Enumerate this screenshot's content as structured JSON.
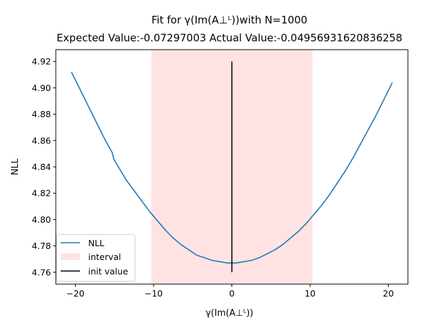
{
  "chart_data": {
    "type": "line",
    "title_line1": "Fit for γ(Im(A⊥ᴸ))with N=1000",
    "title_line2": "Expected Value:-0.07297003 Actual Value:-0.04956931620836258",
    "xlabel": "γ(Im(A⊥ᴸ))",
    "ylabel": "NLL",
    "xlim": [
      -22.5,
      22.5
    ],
    "ylim": [
      4.751,
      4.929
    ],
    "x_ticks": [
      -20,
      -10,
      0,
      10,
      20
    ],
    "y_ticks": [
      4.76,
      4.78,
      4.8,
      4.82,
      4.84,
      4.86,
      4.88,
      4.9,
      4.92
    ],
    "x_tick_labels": [
      "−20",
      "−10",
      "0",
      "10",
      "20"
    ],
    "y_tick_labels": [
      "4.76",
      "4.78",
      "4.80",
      "4.82",
      "4.84",
      "4.86",
      "4.88",
      "4.90",
      "4.92"
    ],
    "series": [
      {
        "name": "NLL",
        "color": "#1f77b4",
        "x": [
          -20.5,
          -19.5,
          -18.5,
          -17.5,
          -16.5,
          -15.7,
          -15.3,
          -15.1,
          -14.5,
          -13.5,
          -12.5,
          -11.5,
          -10.5,
          -9.5,
          -8.5,
          -7.5,
          -6.5,
          -5.5,
          -4.5,
          -3.5,
          -2.5,
          -1.5,
          -0.5,
          0.0,
          0.5,
          1.5,
          2.5,
          3.5,
          4.5,
          5.5,
          6.5,
          7.5,
          8.5,
          9.5,
          10.5,
          11.5,
          12.5,
          13.5,
          14.5,
          15.5,
          16.5,
          17.5,
          18.5,
          19.5,
          20.5
        ],
        "y": [
          4.912,
          4.9,
          4.888,
          4.876,
          4.864,
          4.855,
          4.851,
          4.846,
          4.84,
          4.83,
          4.822,
          4.814,
          4.806,
          4.799,
          4.792,
          4.786,
          4.781,
          4.777,
          4.773,
          4.771,
          4.769,
          4.768,
          4.767,
          4.767,
          4.767,
          4.768,
          4.769,
          4.771,
          4.774,
          4.777,
          4.781,
          4.786,
          4.791,
          4.797,
          4.804,
          4.811,
          4.819,
          4.828,
          4.837,
          4.847,
          4.858,
          4.869,
          4.88,
          4.892,
          4.904
        ]
      }
    ],
    "interval": {
      "name": "interval",
      "x_range": [
        -10.3,
        10.3
      ],
      "color": "#ffaaaa",
      "alpha": 0.33
    },
    "init_value": {
      "name": "init value",
      "x": 0,
      "y_range": [
        4.76,
        4.92
      ],
      "color": "#000000"
    },
    "legend_position": "lower-left"
  }
}
